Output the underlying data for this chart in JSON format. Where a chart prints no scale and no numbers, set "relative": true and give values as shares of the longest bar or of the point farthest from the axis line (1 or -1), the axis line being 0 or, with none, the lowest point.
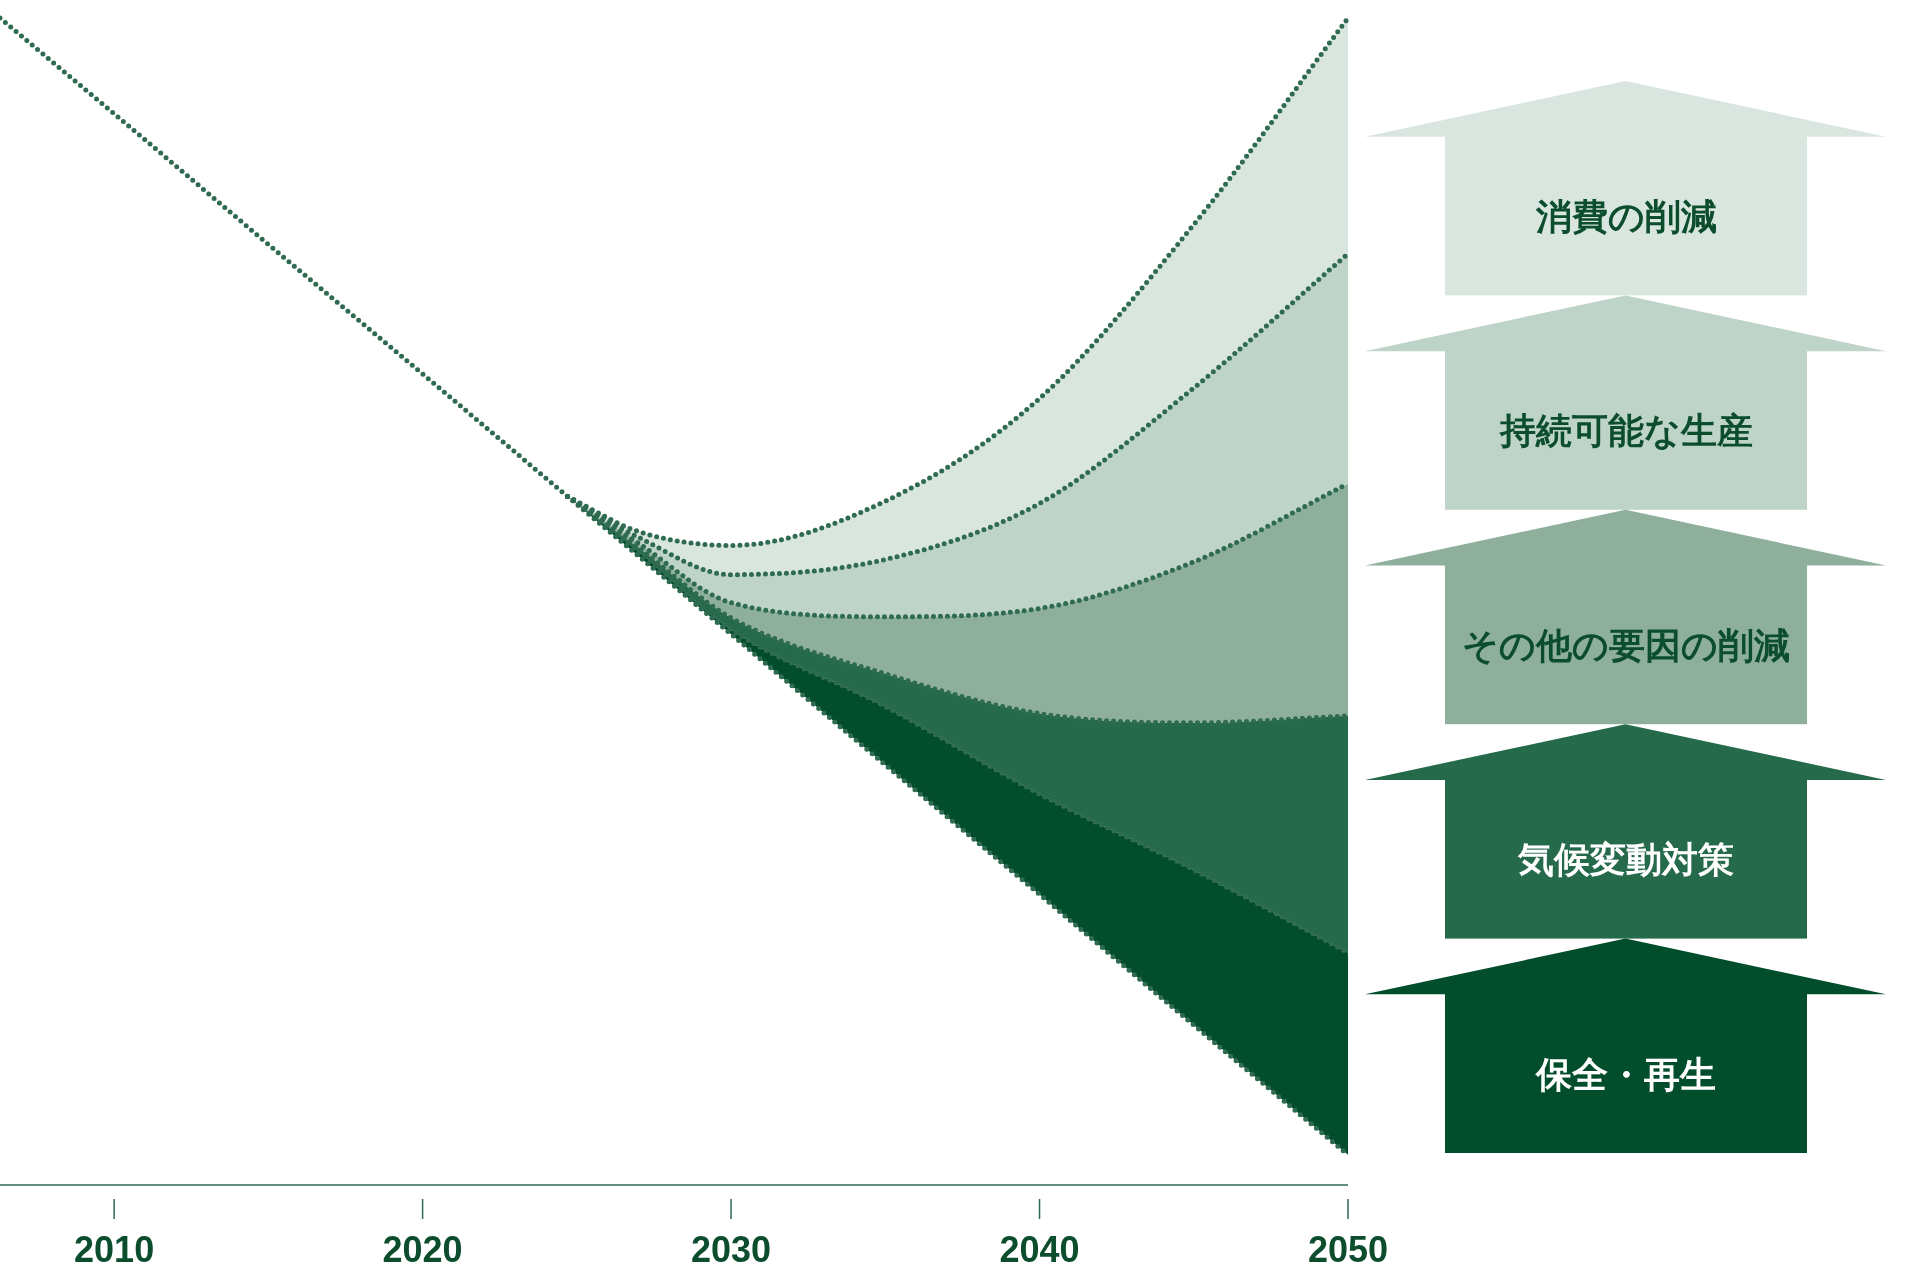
{
  "chart_data": {
    "type": "area",
    "relative": true,
    "stacked": true,
    "line_style": "dotted",
    "legend": "right",
    "x": [
      2006.3,
      2010,
      2015,
      2020,
      2024.7,
      2027,
      2030,
      2035,
      2040,
      2045,
      2050
    ],
    "xlim": [
      2006.3,
      2050
    ],
    "xticks": [
      2010,
      2020,
      2030,
      2040,
      2050
    ],
    "series": [
      {
        "color": "#ffffff",
        "values": [
          1.0,
          0.918,
          0.806,
          0.695,
          0.59,
          0.539,
          0.472,
          0.36,
          0.249,
          0.137,
          0.026
        ]
      },
      {
        "name": "保全・再生",
        "color": "#024d2b",
        "values": [
          null,
          null,
          null,
          null,
          0,
          0.004,
          0.004,
          0.05,
          0.086,
          0.133,
          0.173
        ]
      },
      {
        "name": "気候変動対策",
        "color": "#266a4c",
        "values": [
          null,
          null,
          null,
          null,
          0,
          0.003,
          0.01,
          0.028,
          0.069,
          0.126,
          0.203
        ]
      },
      {
        "name": "その他の要因の削減",
        "color": "#8daf9c",
        "values": [
          null,
          null,
          null,
          null,
          0,
          0.004,
          0.013,
          0.049,
          0.09,
          0.138,
          0.199
        ]
      },
      {
        "name": "持続可能な生産",
        "color": "#bfd4c9",
        "values": [
          null,
          null,
          null,
          null,
          0,
          0.005,
          0.024,
          0.049,
          0.09,
          0.149,
          0.197
        ]
      },
      {
        "name": "消費の削減",
        "color": "#d9e6df",
        "values": [
          null,
          null,
          null,
          null,
          0,
          0.005,
          0.025,
          0.05,
          0.09,
          0.14,
          0.202
        ]
      }
    ]
  }
}
